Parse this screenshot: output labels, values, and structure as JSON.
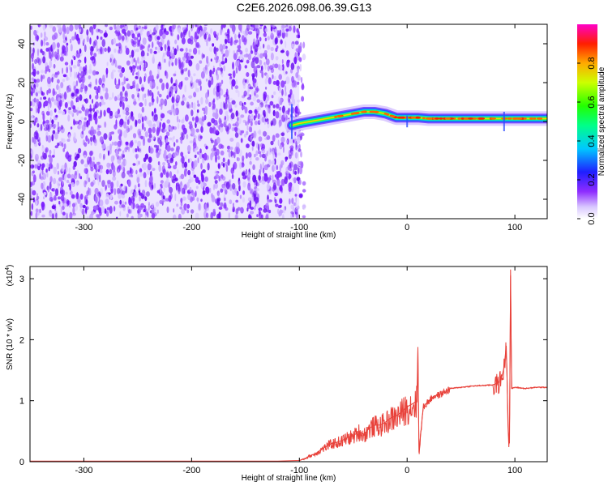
{
  "title": "C2E6.2026.098.06.39.G13",
  "chart_data": [
    {
      "type": "heatmap",
      "name": "spectrogram",
      "xlabel": "Height of straight line (km)",
      "ylabel": "Frequency (Hz)",
      "xlim": [
        -350,
        130
      ],
      "ylim": [
        -50,
        50
      ],
      "xticks": [
        -300,
        -200,
        -100,
        0,
        100
      ],
      "xtick_labels": [
        "-300",
        "-200",
        "-100",
        "0",
        "100"
      ],
      "yticks": [
        -40,
        -20,
        0,
        20,
        40
      ],
      "ytick_labels": [
        "-40",
        "-20",
        "0",
        "20",
        "40"
      ],
      "noise_region_x": [
        -350,
        -100
      ],
      "signal_track": {
        "x": [
          -107,
          -100,
          -90,
          -80,
          -70,
          -60,
          -50,
          -40,
          -30,
          -20,
          -10,
          0,
          10,
          20,
          40,
          60,
          80,
          90,
          100,
          130
        ],
        "freq": [
          -2,
          -1,
          0,
          1,
          2,
          3,
          4,
          5,
          5,
          4,
          2,
          2,
          2,
          1.5,
          1.5,
          1.5,
          1.5,
          1.5,
          1.5,
          1.5
        ]
      },
      "colorbar": {
        "label": "Normalized spectral amplitude",
        "range": [
          0,
          1
        ],
        "ticks": [
          0.0,
          0.2,
          0.4,
          0.6,
          0.8
        ],
        "tick_labels": [
          "0.0",
          "0.2",
          "0.4",
          "0.6",
          "0.8"
        ]
      }
    },
    {
      "type": "line",
      "name": "snr",
      "xlabel": "Height of straight line (km)",
      "ylabel": "SNR (10 * v/v)",
      "scale_label": "(x10",
      "scale_exponent": "4",
      "scale_close": ")",
      "xlim": [
        -350,
        130
      ],
      "ylim": [
        0,
        3.2
      ],
      "xticks": [
        -300,
        -200,
        -100,
        0,
        100
      ],
      "xtick_labels": [
        "-300",
        "-200",
        "-100",
        "0",
        "100"
      ],
      "yticks": [
        0,
        1,
        2,
        3
      ],
      "ytick_labels": [
        "0",
        "1",
        "2",
        "3"
      ],
      "color": "#e8413a",
      "series": [
        {
          "name": "SNR",
          "x": [
            -350,
            -300,
            -200,
            -120,
            -100,
            -95,
            -90,
            -85,
            -80,
            -75,
            -70,
            -65,
            -60,
            -55,
            -50,
            -45,
            -40,
            -35,
            -30,
            -25,
            -20,
            -15,
            -10,
            -5,
            0,
            5,
            9,
            10,
            11,
            15,
            20,
            25,
            30,
            35,
            40,
            50,
            60,
            70,
            80,
            85,
            88,
            90,
            92,
            93,
            94,
            95,
            96,
            97,
            100,
            110,
            120,
            130
          ],
          "y": [
            0.01,
            0.01,
            0.01,
            0.01,
            0.02,
            0.05,
            0.1,
            0.13,
            0.2,
            0.25,
            0.3,
            0.32,
            0.35,
            0.4,
            0.42,
            0.5,
            0.45,
            0.55,
            0.6,
            0.6,
            0.65,
            0.72,
            0.75,
            0.82,
            0.9,
            0.95,
            1.0,
            1.85,
            0.15,
            0.9,
            1.0,
            1.08,
            1.1,
            1.15,
            1.2,
            1.22,
            1.24,
            1.25,
            1.26,
            1.3,
            1.4,
            1.55,
            1.9,
            1.2,
            0.5,
            0.3,
            3.15,
            1.2,
            1.22,
            1.2,
            1.22,
            1.22
          ]
        }
      ]
    }
  ]
}
